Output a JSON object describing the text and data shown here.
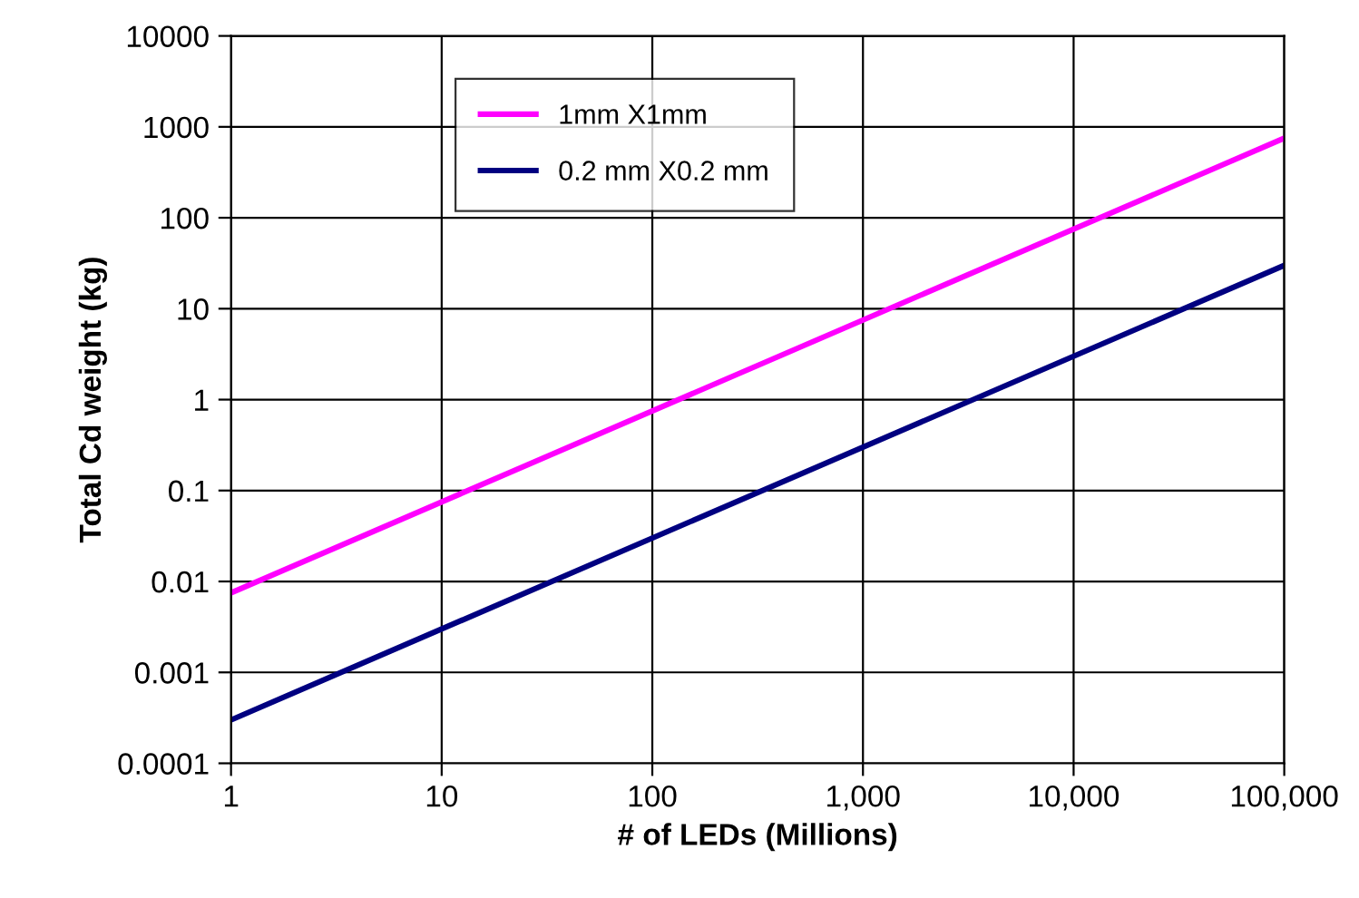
{
  "chart_data": {
    "type": "line",
    "xlabel": "# of LEDs (Millions)",
    "ylabel": "Total Cd weight (kg)",
    "log": "xy",
    "x": [
      1,
      100000
    ],
    "series": [
      {
        "name": "1mm X1mm",
        "color": "#ff00ff",
        "values": [
          0.0075,
          750
        ]
      },
      {
        "name": "0.2 mm X0.2 mm",
        "color": "#000080",
        "values": [
          0.0003,
          30
        ]
      }
    ],
    "xlim": [
      1,
      100000
    ],
    "xticks": [
      1,
      10,
      100,
      {
        "value": 1000,
        "label": "1,000"
      },
      {
        "value": 10000,
        "label": "10,000"
      },
      {
        "value": 100000,
        "label": "100,000"
      }
    ],
    "ylim": [
      0.0001,
      10000
    ],
    "yticks": [
      0.0001,
      0.001,
      0.01,
      0.1,
      1,
      10,
      100,
      1000,
      10000
    ],
    "grid": true,
    "legend": "top left",
    "marker": "none",
    "line_style": "solid"
  }
}
